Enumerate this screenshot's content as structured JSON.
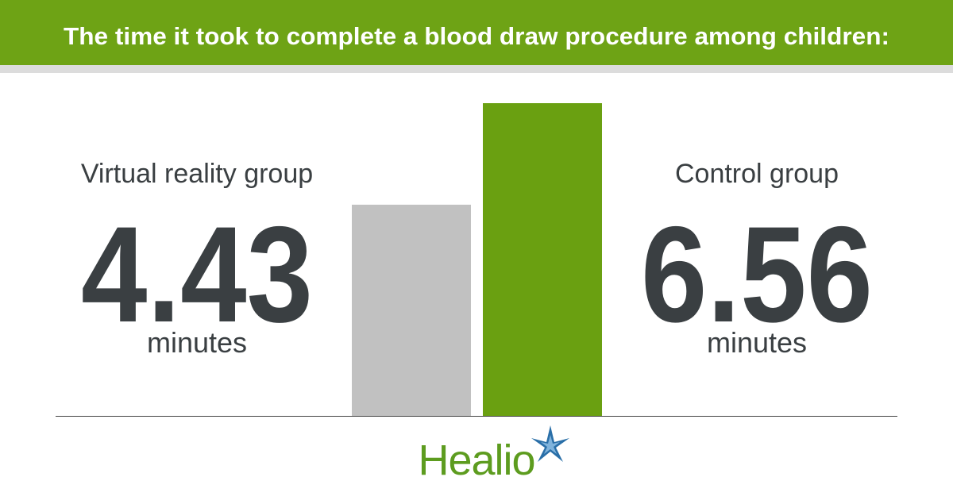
{
  "chart_data": {
    "type": "bar",
    "title": "The time it took to complete a blood draw procedure among children:",
    "categories": [
      "Virtual reality group",
      "Control group"
    ],
    "values": [
      4.43,
      6.56
    ],
    "unit": "minutes",
    "colors": [
      "#c1c1c1",
      "#6aa011"
    ],
    "brand": "Healio"
  }
}
